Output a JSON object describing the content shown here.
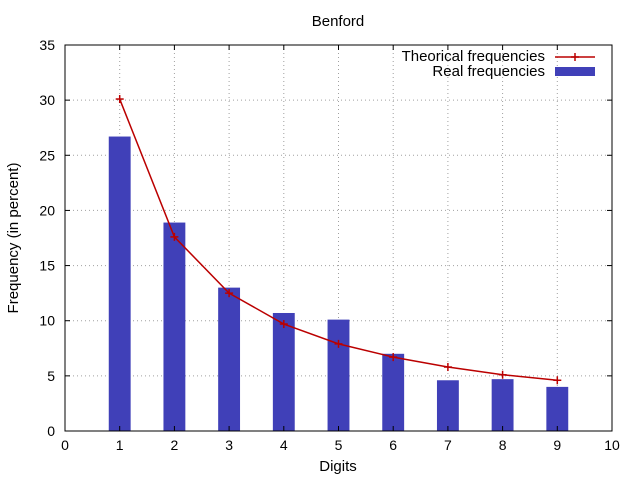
{
  "chart_data": {
    "type": "bar",
    "title": "Benford",
    "xlabel": "Digits",
    "ylabel": "Frequency (in percent)",
    "xlim": [
      0,
      10
    ],
    "ylim": [
      0,
      35
    ],
    "xticks": [
      "0",
      "1",
      "2",
      "3",
      "4",
      "5",
      "6",
      "7",
      "8",
      "9",
      "10"
    ],
    "yticks": [
      "0",
      "5",
      "10",
      "15",
      "20",
      "25",
      "30",
      "35"
    ],
    "grid": true,
    "legend_position": "top-right",
    "categories": [
      1,
      2,
      3,
      4,
      5,
      6,
      7,
      8,
      9
    ],
    "series": [
      {
        "name": "Theorical frequencies",
        "type": "line",
        "color": "#bb0000",
        "values": [
          30.1,
          17.6,
          12.5,
          9.7,
          7.9,
          6.7,
          5.8,
          5.1,
          4.6
        ]
      },
      {
        "name": "Real frequencies",
        "type": "bar",
        "color": "#4040b8",
        "values": [
          26.7,
          18.9,
          13.0,
          10.7,
          10.1,
          7.0,
          4.6,
          4.7,
          4.0
        ]
      }
    ]
  }
}
